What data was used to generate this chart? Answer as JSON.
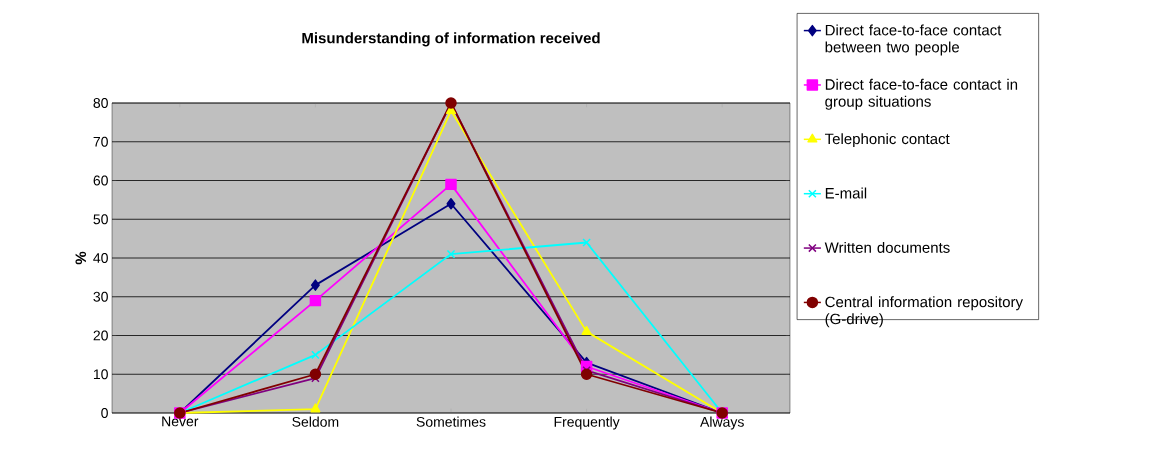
{
  "chart_data": {
    "type": "line",
    "title": "Misunderstanding of information received",
    "ylabel": "%",
    "categories": [
      "Never",
      "Seldom",
      "Sometimes",
      "Frequently",
      "Always"
    ],
    "series": [
      {
        "name": "Direct face-to-face contact between two people",
        "color": "#000080",
        "marker": "diamond",
        "values": [
          0,
          33,
          54,
          13,
          0
        ]
      },
      {
        "name": "Direct face-to-face contact in group situations",
        "color": "#ff00ff",
        "marker": "square",
        "values": [
          0,
          29,
          59,
          12,
          0
        ]
      },
      {
        "name": "Telephonic contact",
        "color": "#ffff00",
        "marker": "triangle",
        "values": [
          0,
          1,
          78,
          21,
          0
        ]
      },
      {
        "name": "E-mail",
        "color": "#00ffff",
        "marker": "cross",
        "values": [
          0,
          15,
          41,
          44,
          0
        ]
      },
      {
        "name": "Written documents",
        "color": "#800080",
        "marker": "cross",
        "values": [
          0,
          9,
          80,
          11,
          0
        ]
      },
      {
        "name": "Central information repository (G-drive)",
        "color": "#800000",
        "marker": "circle",
        "values": [
          0,
          10,
          80,
          10,
          0
        ]
      }
    ],
    "ylim": [
      0,
      80
    ],
    "yticks": [
      0,
      10,
      20,
      30,
      40,
      50,
      60,
      70,
      80
    ],
    "grid": "y",
    "legend": "right",
    "line_style": "solid"
  }
}
